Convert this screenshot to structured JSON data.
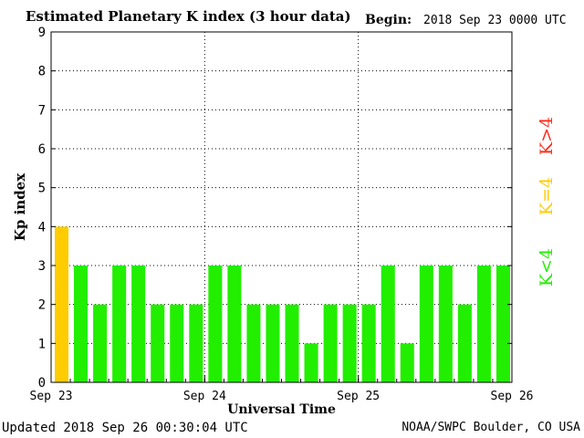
{
  "header": {
    "title": "Estimated Planetary K index (3 hour data)",
    "begin_label": "Begin:",
    "begin_value": "2018 Sep 23 0000 UTC"
  },
  "footer": {
    "updated": "Updated 2018 Sep 26 00:30:04 UTC",
    "source": "NOAA/SWPC Boulder, CO USA"
  },
  "legend": {
    "high": {
      "label": "K>4",
      "color": "#ff2a1a"
    },
    "equal": {
      "label": "K=4",
      "color": "#ffcc00"
    },
    "low": {
      "label": "K<4",
      "color": "#22ee00"
    }
  },
  "chart_data": {
    "type": "bar",
    "title": "Estimated Planetary K index (3 hour data)",
    "xlabel": "Universal Time",
    "ylabel": "Kp index",
    "ylim": [
      0,
      9
    ],
    "yticks": [
      "0",
      "1",
      "2",
      "3",
      "4",
      "5",
      "6",
      "7",
      "8",
      "9"
    ],
    "x_tick_labels": [
      "Sep 23",
      "Sep 24",
      "Sep 25",
      "Sep 26"
    ],
    "interval_hours": 3,
    "values": [
      4,
      3,
      2,
      3,
      3,
      2,
      2,
      2,
      3,
      3,
      2,
      2,
      2,
      1,
      2,
      2,
      2,
      3,
      1,
      3,
      3,
      2,
      3,
      3
    ],
    "grid": true,
    "colors": {
      "below4": "#22ee00",
      "equal4": "#ffcc00",
      "above4": "#ff2a1a"
    }
  }
}
